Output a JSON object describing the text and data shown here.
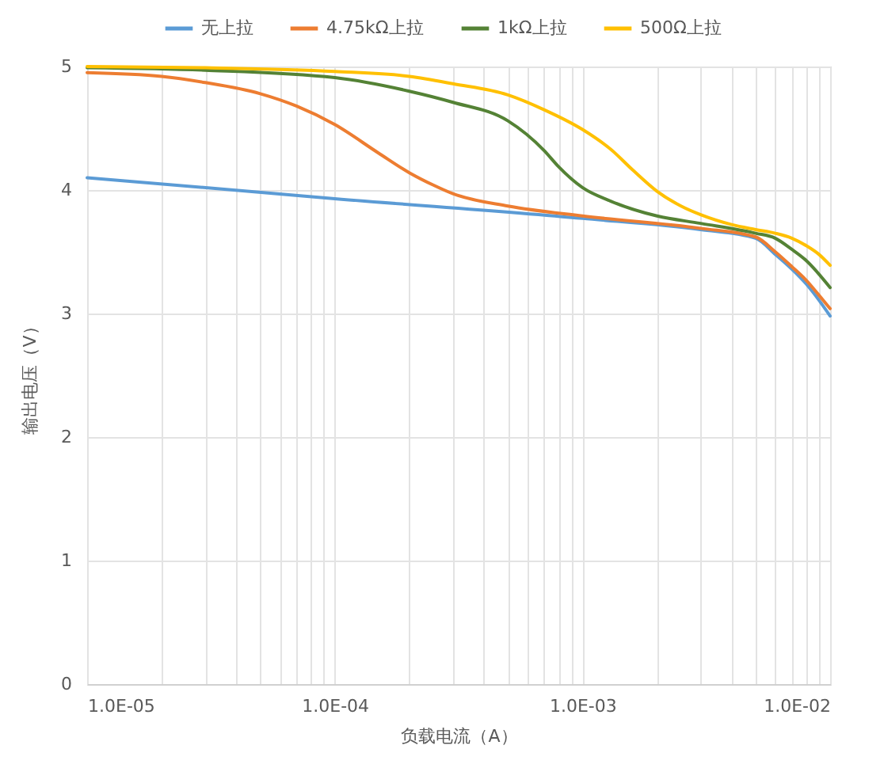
{
  "chart_data": {
    "type": "line",
    "xlabel": "负载电流（A）",
    "ylabel": "输出电压（V）",
    "log": "x",
    "grid": true,
    "legend": "top",
    "xlim": [
      1e-05,
      0.01
    ],
    "ylim": [
      0,
      5
    ],
    "xticks": [
      {
        "value": 1e-05,
        "label": "1.0E-05"
      },
      {
        "value": 2e-05,
        "label": null
      },
      {
        "value": 3e-05,
        "label": null
      },
      {
        "value": 4e-05,
        "label": null
      },
      {
        "value": 5e-05,
        "label": null
      },
      {
        "value": 6e-05,
        "label": null
      },
      {
        "value": 7e-05,
        "label": null
      },
      {
        "value": 8e-05,
        "label": null
      },
      {
        "value": 9e-05,
        "label": null
      },
      {
        "value": 0.0001,
        "label": "1.0E-04"
      },
      {
        "value": 0.0002,
        "label": null
      },
      {
        "value": 0.0003,
        "label": null
      },
      {
        "value": 0.0004,
        "label": null
      },
      {
        "value": 0.0005,
        "label": null
      },
      {
        "value": 0.0006,
        "label": null
      },
      {
        "value": 0.0007,
        "label": null
      },
      {
        "value": 0.0008,
        "label": null
      },
      {
        "value": 0.0009,
        "label": null
      },
      {
        "value": 0.001,
        "label": "1.0E-03"
      },
      {
        "value": 0.002,
        "label": null
      },
      {
        "value": 0.003,
        "label": null
      },
      {
        "value": 0.004,
        "label": null
      },
      {
        "value": 0.005,
        "label": null
      },
      {
        "value": 0.006,
        "label": null
      },
      {
        "value": 0.007,
        "label": null
      },
      {
        "value": 0.008,
        "label": null
      },
      {
        "value": 0.009,
        "label": null
      },
      {
        "value": 0.01,
        "label": "1.0E-02"
      }
    ],
    "yticks": [
      0,
      1,
      2,
      3,
      4,
      5
    ],
    "series": [
      {
        "name": "无上拉",
        "color": "#5b9bd5",
        "x": [
          1e-05,
          0.0001,
          0.001,
          0.003,
          0.005,
          0.006,
          0.007,
          0.008,
          0.009,
          0.01
        ],
        "values": [
          4.1,
          3.93,
          3.77,
          3.68,
          3.61,
          3.48,
          3.36,
          3.24,
          3.11,
          2.98
        ]
      },
      {
        "name": "4.75kΩ上拉",
        "color": "#ed7d31",
        "x": [
          1e-05,
          2e-05,
          3e-05,
          5e-05,
          7e-05,
          0.0001,
          0.00015,
          0.0002,
          0.00025,
          0.0003,
          0.0005,
          0.001,
          0.003,
          0.005,
          0.006,
          0.007,
          0.008,
          0.009,
          0.01
        ],
        "values": [
          4.95,
          4.92,
          4.87,
          4.78,
          4.68,
          4.53,
          4.3,
          4.14,
          4.04,
          3.97,
          3.87,
          3.79,
          3.69,
          3.62,
          3.5,
          3.38,
          3.27,
          3.15,
          3.04
        ]
      },
      {
        "name": "1kΩ上拉",
        "color": "#548235",
        "x": [
          1e-05,
          3e-05,
          0.0001,
          0.0002,
          0.0003,
          0.0005,
          0.0007,
          0.0008,
          0.001,
          0.0013,
          0.002,
          0.003,
          0.005,
          0.006,
          0.007,
          0.008,
          0.01
        ],
        "values": [
          4.99,
          4.97,
          4.91,
          4.8,
          4.71,
          4.56,
          4.32,
          4.19,
          4.02,
          3.91,
          3.79,
          3.73,
          3.65,
          3.61,
          3.52,
          3.43,
          3.21
        ]
      },
      {
        "name": "500Ω上拉",
        "color": "#ffc000",
        "x": [
          1e-05,
          3e-05,
          0.0001,
          0.0002,
          0.0003,
          0.0005,
          0.0007,
          0.001,
          0.0013,
          0.0016,
          0.002,
          0.0025,
          0.003,
          0.004,
          0.005,
          0.006,
          0.007,
          0.008,
          0.009,
          0.01
        ],
        "values": [
          5.0,
          4.99,
          4.96,
          4.92,
          4.86,
          4.77,
          4.65,
          4.49,
          4.33,
          4.16,
          3.99,
          3.87,
          3.8,
          3.72,
          3.68,
          3.65,
          3.61,
          3.55,
          3.48,
          3.39
        ]
      }
    ]
  }
}
